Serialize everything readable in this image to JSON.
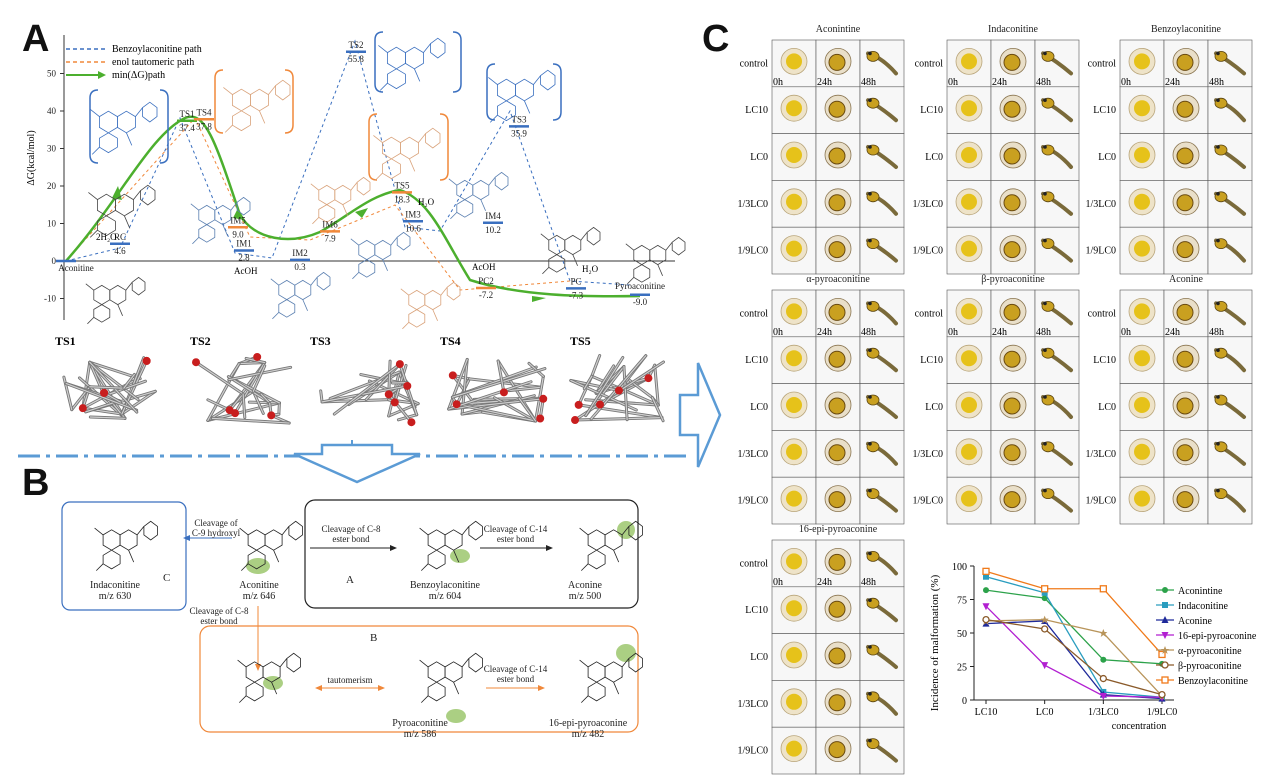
{
  "panels": {
    "a": "A",
    "b": "B",
    "c": "C"
  },
  "panelA": {
    "legend": [
      "Benzoylaconitine path",
      "enol tautomeric path",
      "min(ΔG)path"
    ],
    "ylabel": "ΔG(kcal/mol)",
    "yticks": [
      "-10",
      "0",
      "10",
      "20",
      "30",
      "40",
      "50"
    ],
    "states": [
      {
        "name": "Aconitine",
        "value": ""
      },
      {
        "name": "RC",
        "value": "4.6"
      },
      {
        "name": "TS1",
        "value": "37.4"
      },
      {
        "name": "TS4",
        "value": "37.8"
      },
      {
        "name": "IM1",
        "value": "2.8"
      },
      {
        "name": "IM5",
        "value": "9.0"
      },
      {
        "name": "IM2",
        "value": "0.3"
      },
      {
        "name": "IM6",
        "value": "7.9"
      },
      {
        "name": "TS2",
        "value": "55.8"
      },
      {
        "name": "TS5",
        "value": "18.3"
      },
      {
        "name": "IM3",
        "value": "10.6"
      },
      {
        "name": "IM4",
        "value": "10.2"
      },
      {
        "name": "TS3",
        "value": "35.9"
      },
      {
        "name": "PC2",
        "value": "-7.2"
      },
      {
        "name": "PC",
        "value": "-7.3"
      },
      {
        "name": "Pyroaconitine",
        "value": "-9.0"
      }
    ],
    "molecule_labels": {
      "h2o_1": "2H₂O",
      "acoh_1": "AcOH",
      "h2o_2": "H₂O",
      "acoh_2": "AcOH",
      "h2o_3": "H₂O"
    },
    "ts_labels": [
      "TS1",
      "TS2",
      "TS3",
      "TS4",
      "TS5"
    ],
    "colors": {
      "blue": "#3a6fbf",
      "orange": "#f0883a",
      "green": "#4caf2e"
    }
  },
  "panelB": {
    "compounds": {
      "aconitine": {
        "name": "Aconitine",
        "mz": "m/z 646"
      },
      "indaconitine": {
        "name": "Indaconitine",
        "mz": "m/z 630"
      },
      "benzoylaconitine": {
        "name": "Benzoylaconitine",
        "mz": "m/z  604"
      },
      "aconine": {
        "name": "Aconine",
        "mz": "m/z 500"
      },
      "pyroaconitine": {
        "name": "Pyroaconitine",
        "mz": "m/z 586"
      },
      "epi": {
        "name": "16-epi-pyroaconine",
        "mz": "m/z 482"
      }
    },
    "arrows": {
      "c9": [
        "Cleavage of",
        "C-9 hydroxyl"
      ],
      "c8_a": [
        "Cleavage of C-8",
        "ester bond"
      ],
      "c14_a": [
        "Cleavage of C-14",
        "ester bond"
      ],
      "c8_b": [
        "Cleavage of C-8",
        "ester bond"
      ],
      "tautomerism": "tautomerism",
      "c14_b": [
        "Cleavage of C-14",
        "ester bond"
      ]
    },
    "box_labels": {
      "a": "A",
      "b": "B",
      "c": "C"
    }
  },
  "panelC": {
    "grids": [
      {
        "title": "Aconintine"
      },
      {
        "title": "Indaconitine"
      },
      {
        "title": "Benzoylaconitine"
      },
      {
        "title": "α-pyroaconitine"
      },
      {
        "title": "β-pyroaconitine"
      },
      {
        "title": "Aconine"
      },
      {
        "title": "16-epi-pyroaconine"
      }
    ],
    "row_labels": [
      "control",
      "LC10",
      "LC0",
      "1/3LC0",
      "1/9LC0"
    ],
    "time_labels": [
      "0h",
      "24h",
      "48h"
    ],
    "chart_data": {
      "type": "line",
      "categories": [
        "LC10",
        "LC0",
        "1/3LC0",
        "1/9LC0"
      ],
      "ylabel": "Incidence of malformation (%)",
      "xlabel": "concentration",
      "ylim": [
        0,
        100
      ],
      "yticks": [
        "0",
        "25",
        "50",
        "75",
        "100"
      ],
      "legend_position": "right",
      "series": [
        {
          "name": "Aconintine",
          "values": [
            82,
            76,
            30,
            27
          ],
          "color": "#2ca24a",
          "marker": "circle"
        },
        {
          "name": "Indaconitine",
          "values": [
            92,
            80,
            6,
            2
          ],
          "color": "#2a9dbf",
          "marker": "square"
        },
        {
          "name": "Aconine",
          "values": [
            57,
            59,
            4,
            1
          ],
          "color": "#1f2a9a",
          "marker": "triangle"
        },
        {
          "name": "16-epi-pyroaconine",
          "values": [
            70,
            26,
            3,
            2
          ],
          "color": "#b21fd1",
          "marker": "triangle-down"
        },
        {
          "name": "α-pyroaconitine",
          "values": [
            59,
            60,
            50,
            3
          ],
          "color": "#b8945a",
          "marker": "star"
        },
        {
          "name": "β-pyroaconitine",
          "values": [
            60,
            53,
            16,
            4
          ],
          "color": "#8a5a2a",
          "marker": "open-circle"
        },
        {
          "name": "Benzoylaconitine",
          "values": [
            96,
            83,
            83,
            34
          ],
          "color": "#f07a1a",
          "marker": "open-square"
        }
      ]
    }
  },
  "divider_color": "#5b9bd5"
}
